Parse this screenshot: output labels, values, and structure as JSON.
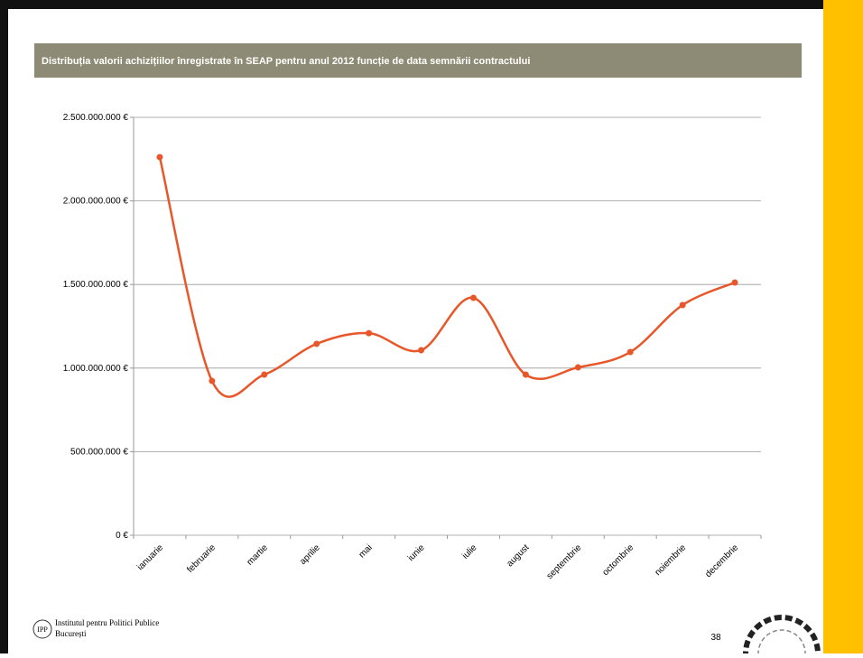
{
  "chart_data": {
    "type": "line",
    "title": "Distribuția valorii achizițiilor înregistrate în SEAP pentru anul 2012 funcție de data semnării contractului",
    "categories": [
      "ianuarie",
      "februarie",
      "martie",
      "aprilie",
      "mai",
      "iunie",
      "iulie",
      "august",
      "septembrie",
      "octombrie",
      "noiembrie",
      "decembrie"
    ],
    "series": [
      {
        "color": "#e8572a",
        "values": [
          2262000000,
          923000000,
          961000000,
          1145000000,
          1209000000,
          1107000000,
          1420000000,
          961000000,
          1004000000,
          1096000000,
          1377000000,
          1512000000
        ]
      }
    ],
    "smooth": true,
    "ylim": [
      0,
      2500000000
    ],
    "yticks": [
      {
        "value": 0,
        "label": "0 €"
      },
      {
        "value": 500000000,
        "label": "500.000.000 €"
      },
      {
        "value": 1000000000,
        "label": "1.000.000.000 €"
      },
      {
        "value": 1500000000,
        "label": "1.500.000.000 €"
      },
      {
        "value": 2000000000,
        "label": "2.000.000.000 €"
      },
      {
        "value": 2500000000,
        "label": "2.500.000.000 €"
      }
    ],
    "grid": true
  },
  "footer": {
    "org_line1": "Institutul pentru Politici Publice",
    "org_line2": "București",
    "logo": "IPP",
    "page_number": "38"
  }
}
